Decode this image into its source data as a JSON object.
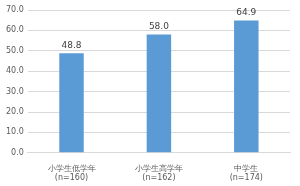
{
  "chart_data": {
    "type": "bar",
    "categories": [
      [
        "小学生低学年",
        "(n=160)"
      ],
      [
        "小学生高学年",
        "(n=162)"
      ],
      [
        "中学生",
        "(n=174)"
      ]
    ],
    "values": [
      48.8,
      58.0,
      64.9
    ],
    "value_labels": [
      "48.8",
      "58.0",
      "64.9"
    ],
    "data_labels": true,
    "color": "#5b9bd5",
    "ylim": [
      0,
      70
    ],
    "yticks": [
      {
        "value": 0,
        "label": "0.0"
      },
      {
        "value": 10,
        "label": "10.0"
      },
      {
        "value": 20,
        "label": "20.0"
      },
      {
        "value": 30,
        "label": "30.0"
      },
      {
        "value": 40,
        "label": "40.0"
      },
      {
        "value": 50,
        "label": "50.0"
      },
      {
        "value": 60,
        "label": "60.0"
      },
      {
        "value": 70,
        "label": "70.0"
      }
    ],
    "grid": true
  }
}
